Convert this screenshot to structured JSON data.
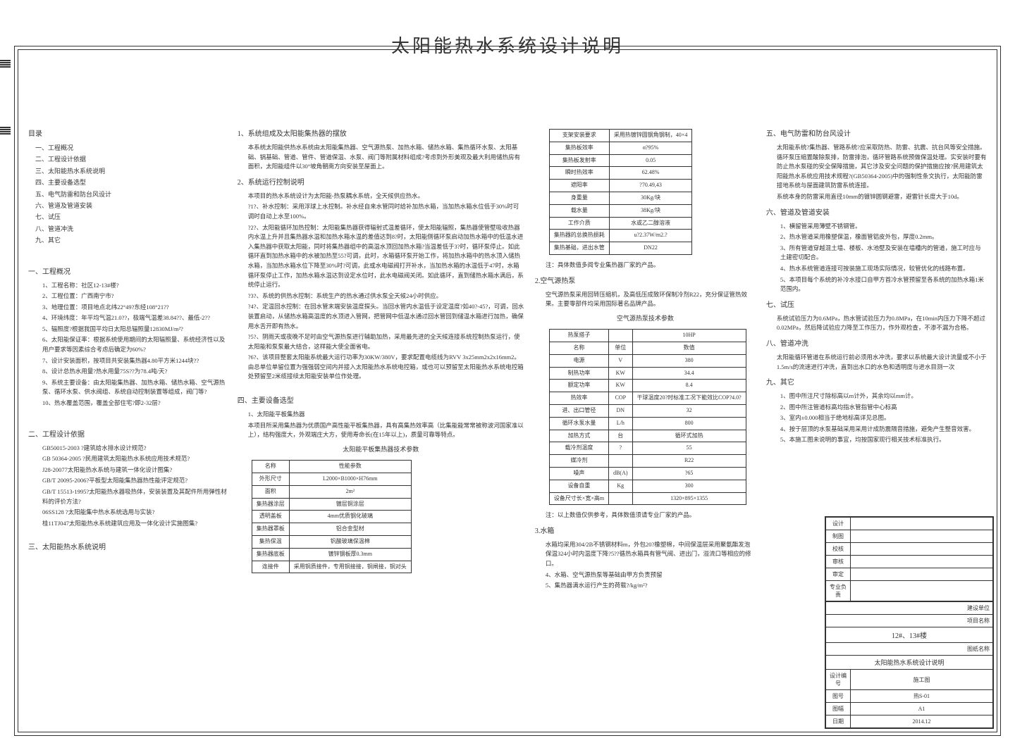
{
  "title": "太阳能热水系统设计说明",
  "toc": {
    "heading": "目录",
    "items": [
      "一、工程概况",
      "二、工程设计依据",
      "三、太阳能热水系统说明",
      "四、主要设备选型",
      "五、电气防雷和防台风设计",
      "六、管道及管道安装",
      "七、试压",
      "八、管道冲洗",
      "九、其它"
    ]
  },
  "sec1": {
    "heading": "一、工程概况",
    "items": [
      "1、工程名称：社区12-13#楼?",
      "2、工程位置：广西南宁市?",
      "3、地理位置：项目地点北纬22°49?东经108°21??",
      "4、环境纬度：年平均气温21.0??，极端气温差38.84??、最低-2??",
      "5、辐照度?根据我国平均日太阳总辐照量12830MJ/m²?",
      "6、太阳能保证率：根据系统使用期间的太阳辐照量、系统经济性以及用户要求等因素综合考虑后确定为60%?",
      "7、设计安装面积，按项目共安装集热器4.80平方米1244块??",
      "8、设计总热水用量?热水用量75S??为78.4吨/天?",
      "9、系统主要设备：由太阳能集热器、加热水箱、储热水箱、空气源热泵、循环水泵、供水阀组、系统自动控制装置等组成，阀门等?",
      "10、热水覆盖范围，覆盖全部住宅?即2-32层?"
    ]
  },
  "sec2": {
    "heading": "二、工程设计依据",
    "items": [
      "GB50015-2003 ?建筑给水排水设计规范?",
      "GB 50364-2005 ?民用建筑太阳能热水系统应用技术规范?",
      "J28-20077太阳能热水系统与建筑一体化设计图集?",
      "GB/T 20095-2006?平板型太阳能集热器热性能评定规范?",
      "GB/T 15513-1995?太阳能热水器吸热体，安装装置及其配件所用弹性材料的评价方法?",
      "06SS128 ?太阳能集中热水系统选用与实装?",
      "桂11TJ047太阳能热水系统建筑应用及一体化设计实施图集?"
    ]
  },
  "sec3_intro": "三、太阳能热水系统说明",
  "col2": {
    "h1": "1、系统组成及太阳能集热器的摆放",
    "p1": "本系统太阳能供热水系统由太阳能集热器、空气源热泵、加热水箱、储热水箱、集热循环水泵、太阳基础、锅基础、管道、管件、管道保温、水泵、阀门等附属材料组成?考虑到外形美观及最大利用储热房有面积，太阳能组件以30°坡角朝南方向安装至屋面上。",
    "h2": "2、系统运行控制说明",
    "p2": "本项目的热水系统设计为太阳能-热泵耦水系统，全天候供应热水。",
    "items2": [
      "?1?、补水控制：采用浮球上水控制。补水经自来水管同时给补加热水箱，当加热水箱水位低于30%时可调时自动上水至100%。",
      "?2?、太阳能循环加热控制：太阳能集热器获得辐射式温差循环，使太阳能辐照，集热器使管壁吸收热器内水温上升并且集热器水温和加热水箱水温的差值达到8?时，太阳能侧循环泵启动加热水箱中的低温水进入集热器中获取太阳能，同时将集热器组中的高温水顶回加热水箱?当温差低于3?时，循环泵停止。如此循环直到加热水箱中的水被加热至55?可调，此时，水箱循环泵开始工作，将加热水箱中的热水顶入储热水箱，当加热水箱水位下降至30%时?可调，此或水电磁阀打开补水，当加热水箱的水温低于47时，水箱循环泵停止工作，加热水箱水温达到设定水位时，此水电磁阀关闭。如此循环，直到储热水箱水满后，系统停止运行。",
      "?3?、系统的供热水控制：系统生产的热水通过供水泵全天候24小时供应。",
      "?4?、定温回水控制：在回水管末端安装温度探头。当回水管内水温低于设定温度?如40?-45?，可调，回水装置启动，从储热水箱高温度的水顶进入管网，把管网中低温水通过回水管回到储温水箱进行加热，确保用水舌开即有热水。",
      "?5?、阴雨天或夜晚不足时由空气源热泵进行辅助加热，采用最先进的全天候连接系统控制热泵运行，使太阳能和泵泵最大结合，这样能大使全面省电。",
      "?6?、该项目整套太阳能系统最大运行功率为30KW/380V，要求配置电缆线为RVV 3x25mm2x2x16mm2。由总单位单留位置为强强弱空间内并接入太阳能热水系统电控箱，或也可以预留至太阳能热水系统电控箱处预留至2米缆接续太阳能安装单位作处理。"
    ],
    "h4": "四、主要设备选型",
    "h4_1": "1、太阳能平板集热器",
    "p4_1": "本项目所采用集热器为优质国产高性能平板集热器，具有高集热效率高（比集能能常常被称波河国家准以上），结构强度大，外观端庄大方，使用寿命长(在15年以上)，质量可靠等特点。",
    "table1_caption": "太阳能平板集热器技术参数",
    "table1": {
      "headers": [
        "名称",
        "性能参数"
      ],
      "rows": [
        [
          "外形尺寸",
          "L2000×B1000×H76mm"
        ],
        [
          "面积",
          "2m²"
        ],
        [
          "集热器涂层",
          "镀层铜涂层"
        ],
        [
          "透明盖板",
          "4mm优质钢化玻璃"
        ],
        [
          "集热器罩板",
          "铝合金型材"
        ],
        [
          "集热保温",
          "钒酸玻璃保温棉"
        ],
        [
          "集热器底板",
          "镀锌钢板厚0.3mm"
        ],
        [
          "连接件",
          "采用铜质接件，专用铜接接，铜闸接，铜对头"
        ]
      ]
    }
  },
  "col3": {
    "table2": {
      "rows": [
        [
          "支架安装要求",
          "采用热镀锌圆钢角钢制，40×4"
        ],
        [
          "集热板效率",
          "α?95%"
        ],
        [
          "集热板发射率",
          "0.05"
        ],
        [
          "瞬时热效率",
          "62.48%"
        ],
        [
          "遮阳率",
          "?70.49,43"
        ],
        [
          "身重量",
          "30Kg/块"
        ],
        [
          "载水量",
          "38Kg/块"
        ],
        [
          "工作介质",
          "水或乙二醇溶液"
        ],
        [
          "集热器的总换热损耗",
          "u?2.37W/m2.?"
        ],
        [
          "集热基础，进出水管",
          "DN22"
        ]
      ]
    },
    "note1": "注：具体数值多阅专业集热器厂家的产品。",
    "h2": "2.空气源热泵",
    "p2": "空气源热泵采用回转压缩机，及高低压成致环保制冷剂R22，充分保证管热效果。主要零部件均采用国际著名品牌产品。",
    "table3_caption": "空气源热泵技术参数",
    "table3": {
      "headers": [
        "热泵搭子",
        "",
        "10HP"
      ],
      "rows": [
        [
          "名称",
          "单位",
          "数值"
        ],
        [
          "电源",
          "V",
          "380"
        ],
        [
          "制热功率",
          "KW",
          "34.4"
        ],
        [
          "额定功率",
          "KW",
          "8.4"
        ],
        [
          "热效率",
          "COP",
          "干球温度20?时标准工况下能效比COP?4.0?"
        ],
        [
          "进、出口管径",
          "DN",
          "32"
        ],
        [
          "循环水泵水量",
          "L/h",
          "800"
        ],
        [
          "加热方式",
          "台",
          "循环式加热"
        ],
        [
          "载冷剂温度",
          "?",
          "55"
        ],
        [
          "媒冷剂",
          "",
          "R22"
        ],
        [
          "噪声",
          "dB(A)",
          "?65"
        ],
        [
          "设备自重",
          "Kg",
          "300"
        ],
        [
          "设备尺寸长×宽×高m",
          "",
          "1320×895×1355"
        ]
      ]
    },
    "note3": "注：以上数值仅供参考，具体数值须请专业厂家的产品。",
    "h3": "3.水箱",
    "p3": "水箱均采用304/2B不锈钢材料m，外包20?橡塑棉，中间保温层采用聚氨酯发泡保温324小时内温度下降?5??循热水箱具有管气阀、进出门，溢流口等相应的修口。",
    "h4": "4、水箱、空气源热泵等基础由甲方负责预留",
    "h5": "5、集热器满水运行产生的荷载?/kg/m²?"
  },
  "col4": {
    "h5": "五、电气防雷和防台风设计",
    "p5": "太阳能系统?集热器、管路系统?应采取防热、防雷、抗震、抗台风等安全措施。循环泵压缩置酸除泵排，防雷排泡，循环管路系统预做保温处理。实安装时要有防止热水泵碰的安全保障措施，其它涉及安全问题的保护措施应按?民用建筑太阳能热水系统应用技术规程?(GB50364-2005)中的强制性条文执行，太阳能防雷接地系统与屋面建筑防雷系统连接。",
    "p5b": "系统本身的防雷采用直径10mm的镀锌圆钢避雷，避雷针长度大于10d。",
    "h6": "六、管道及管道安装",
    "items6": [
      "1、横留管采用薄壁不锈钢管。",
      "2、热水管道采用橡塑保温，橡面管铝皮外包，厚度0.2mm。",
      "3、所有管道穿越混土墙、楼板、水池壁及安装在墙槽内的管道，施工时应与土建密切配合。",
      "4、热水系统管道连接可按装施工现场实际情况，较管优化的线路布置。",
      "5、本项目每个系统的补冷水接口自甲方首冷水管预留至各系统的加热水箱1米范围内。"
    ],
    "h7": "七、试压",
    "p7": "系统试验压力为0.6MPa，热水管试验压力为0.8MPa，在10min内压力下降不超过0.02MPa，然后降试验应力降至工作压力，作外观检查，不渗不漏为合格。",
    "h8": "八、管道冲洗",
    "p8": "太阳能循环管道在系统运行前必须用水冲洗，要求以系统最大设计流量或不小于1.5m/s的流速进行冲洗，直到出水口的水色和透明度与进水目测一次",
    "h9": "九、其它",
    "items9": [
      "1、图中所注尺寸除标高以m计外，其余均以mm计。",
      "2、图中所注管道标高均指水管指管中心标高",
      "3、室内±0.000相当于绝地标高详见总图。",
      "4、按于层顶的水泵基础采用采用计成防震隔音措施，避免产生整音效害。",
      "5、本施工图未说明的事宜，均按国家现行相关技术标准执行。"
    ]
  },
  "titleblock": {
    "rows_left": [
      [
        "设计",
        ""
      ],
      [
        "制图",
        ""
      ],
      [
        "校核",
        ""
      ],
      [
        "审核",
        ""
      ],
      [
        "审定",
        ""
      ],
      [
        "专业负责",
        ""
      ]
    ],
    "company": "建设单位",
    "project": "项目名称",
    "building": "12#、13#楼",
    "drawing_label": "图纸名称",
    "drawing_name": "太阳能热水系统设计说明",
    "designer_row": [
      "设计编号",
      "施工图"
    ],
    "sheet_row": [
      "图号",
      "热S-01"
    ],
    "scale_row": [
      "图幅",
      "A1"
    ],
    "date_row": [
      "日期",
      "2014.12"
    ]
  }
}
